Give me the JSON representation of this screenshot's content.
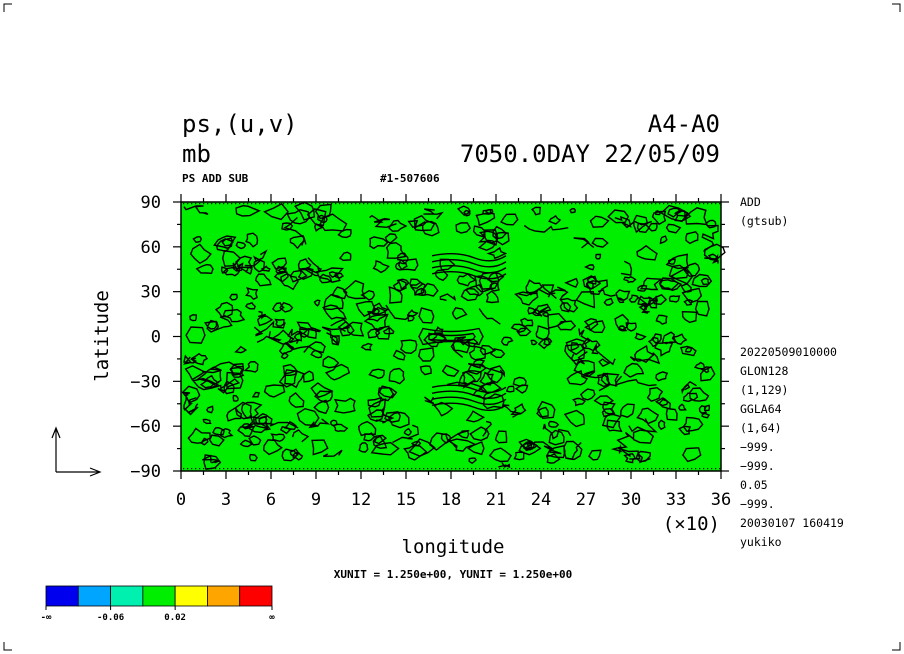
{
  "chart_data": {
    "type": "heatmap",
    "variable": "ps,(u,v)",
    "unit": "mb",
    "model": "A4-A0",
    "time": "7050.0DAY 22/05/09",
    "subtitle_left": "PS ADD SUB",
    "subtitle_right": "#1-507606",
    "xlabel": "longitude",
    "ylabel": "latitude",
    "xlim": [
      0,
      36
    ],
    "ylim": [
      -90,
      90
    ],
    "x_multiplier": "(×10)",
    "xticks": [
      "0",
      "3",
      "6",
      "9",
      "12",
      "15",
      "18",
      "21",
      "24",
      "27",
      "30",
      "33",
      "36"
    ],
    "yticks": [
      "90",
      "60",
      "30",
      "0",
      "−30",
      "−60",
      "−90"
    ],
    "fill_level": 0.02,
    "fill_color": "#00ee00",
    "contours": [
      {
        "shape": "bone",
        "lon": 18.0,
        "lat": 0
      },
      {
        "shape": "bands",
        "lon": 19.0,
        "lat": 48
      },
      {
        "shape": "bands",
        "lon": 19.0,
        "lat": -40
      }
    ],
    "units_line": "XUNIT = 1.250e+00, YUNIT = 1.250e+00",
    "info_top": [
      "ADD",
      "(gtsub)"
    ],
    "info_bottom": [
      "20220509010000",
      "GLON128",
      "(1,129)",
      "GGLA64",
      "(1,64)",
      "−999.",
      "−999.",
      "0.05",
      "−999.",
      "20030107 160419",
      "yukiko"
    ],
    "colorbar": {
      "colors": [
        "#0000ee",
        "#00a5ff",
        "#00f0b0",
        "#00ee00",
        "#ffff00",
        "#ffa500",
        "#ff0000"
      ],
      "labels": [
        "-∞",
        "-0.06",
        "0.02",
        "∞"
      ]
    }
  }
}
